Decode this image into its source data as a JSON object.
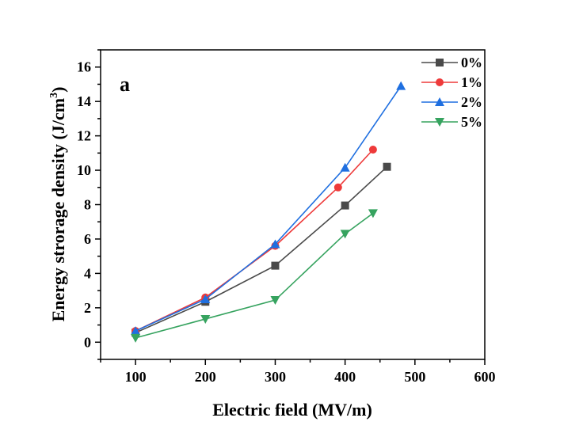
{
  "chart_data": {
    "type": "line",
    "title": "",
    "panel_label": "a",
    "xlabel": "Electric field (MV/m)",
    "ylabel": "Energy strorage density (J/cm",
    "ylabel_sup": "3",
    "ylabel_close": ")",
    "xlim": [
      50,
      600
    ],
    "ylim": [
      -1,
      17
    ],
    "xticks": [
      100,
      200,
      300,
      400,
      500,
      600
    ],
    "yticks": [
      0,
      2,
      4,
      6,
      8,
      10,
      12,
      14,
      16
    ],
    "grid": false,
    "legend_position": "top-right",
    "series": [
      {
        "name": "0%",
        "color": "#4a4a4a",
        "marker": "square",
        "x": [
          100,
          200,
          300,
          400,
          460
        ],
        "y": [
          0.55,
          2.35,
          4.45,
          7.95,
          10.2
        ]
      },
      {
        "name": "1%",
        "color": "#ee3a3a",
        "marker": "circle",
        "x": [
          100,
          200,
          300,
          390,
          440
        ],
        "y": [
          0.65,
          2.6,
          5.6,
          9.0,
          11.2
        ]
      },
      {
        "name": "2%",
        "color": "#1f6fe0",
        "marker": "triangle-up",
        "x": [
          100,
          200,
          300,
          400,
          480
        ],
        "y": [
          0.65,
          2.5,
          5.7,
          10.15,
          14.9
        ]
      },
      {
        "name": "5%",
        "color": "#36a35f",
        "marker": "triangle-down",
        "x": [
          100,
          200,
          300,
          400,
          440
        ],
        "y": [
          0.25,
          1.35,
          2.45,
          6.3,
          7.5
        ]
      }
    ]
  }
}
